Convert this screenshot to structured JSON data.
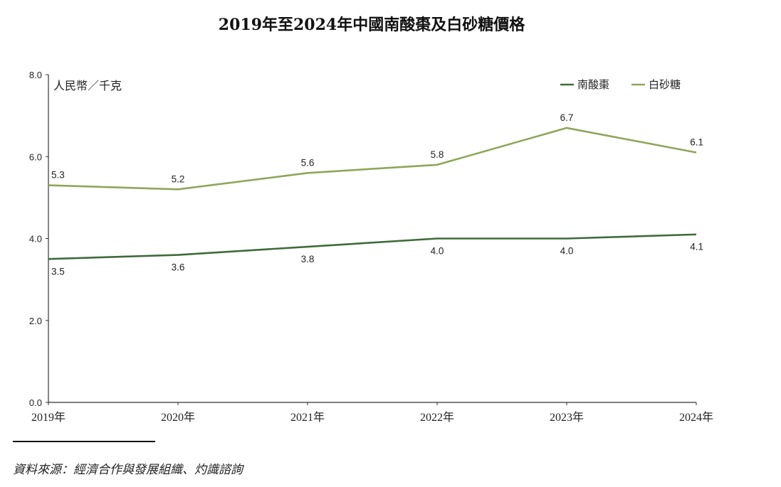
{
  "chart_data": {
    "type": "line",
    "title": "2019年至2024年中國南酸棗及白砂糖價格",
    "ylabel": "人民幣／千克",
    "xlabel": "",
    "categories": [
      "2019年",
      "2020年",
      "2021年",
      "2022年",
      "2023年",
      "2024年"
    ],
    "ylim": [
      0,
      8
    ],
    "yticks": [
      "0.0",
      "2.0",
      "4.0",
      "6.0",
      "8.0"
    ],
    "grid": false,
    "legend_position": "top-right",
    "series": [
      {
        "name": "南酸棗",
        "color": "#3e6b3a",
        "values": [
          3.5,
          3.6,
          3.8,
          4.0,
          4.0,
          4.1
        ],
        "labels": [
          "3.5",
          "3.6",
          "3.8",
          "4.0",
          "4.0",
          "4.1"
        ],
        "label_position": "below"
      },
      {
        "name": "白砂糖",
        "color": "#8fa65a",
        "values": [
          5.3,
          5.2,
          5.6,
          5.8,
          6.7,
          6.1
        ],
        "labels": [
          "5.3",
          "5.2",
          "5.6",
          "5.8",
          "6.7",
          "6.1"
        ],
        "label_position": "above"
      }
    ]
  },
  "source": "資料來源：經濟合作與發展組織、灼識諮詢"
}
